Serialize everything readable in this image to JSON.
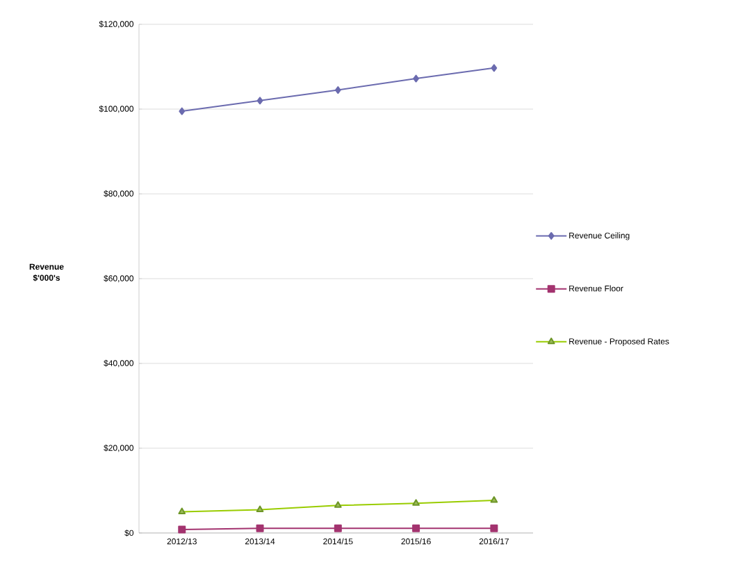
{
  "chart_data": {
    "type": "line",
    "ylabel": "Revenue $'000's",
    "categories": [
      "2012/13",
      "2013/14",
      "2014/15",
      "2015/16",
      "2016/17"
    ],
    "series": [
      {
        "name": "Revenue Ceiling",
        "color": "#6b6baf",
        "marker": "diamond",
        "values": [
          99500,
          102000,
          104500,
          107200,
          109700
        ]
      },
      {
        "name": "Revenue Floor",
        "color": "#a3336f",
        "marker": "square",
        "values": [
          800,
          1100,
          1100,
          1100,
          1100
        ]
      },
      {
        "name": "Revenue - Proposed Rates",
        "color": "#99cc00",
        "marker": "triangle",
        "values": [
          5000,
          5500,
          6500,
          7000,
          7700
        ]
      }
    ],
    "ylim": [
      0,
      120000
    ],
    "yticks": [
      {
        "value": 0,
        "label": "$0"
      },
      {
        "value": 20000,
        "label": "$20,000"
      },
      {
        "value": 40000,
        "label": "$40,000"
      },
      {
        "value": 60000,
        "label": "$60,000"
      },
      {
        "value": 80000,
        "label": "$80,000"
      },
      {
        "value": 100000,
        "label": "$100,000"
      },
      {
        "value": 120000,
        "label": "$120,000"
      }
    ],
    "grid": "y",
    "legend": "right",
    "line_style": "solid"
  }
}
